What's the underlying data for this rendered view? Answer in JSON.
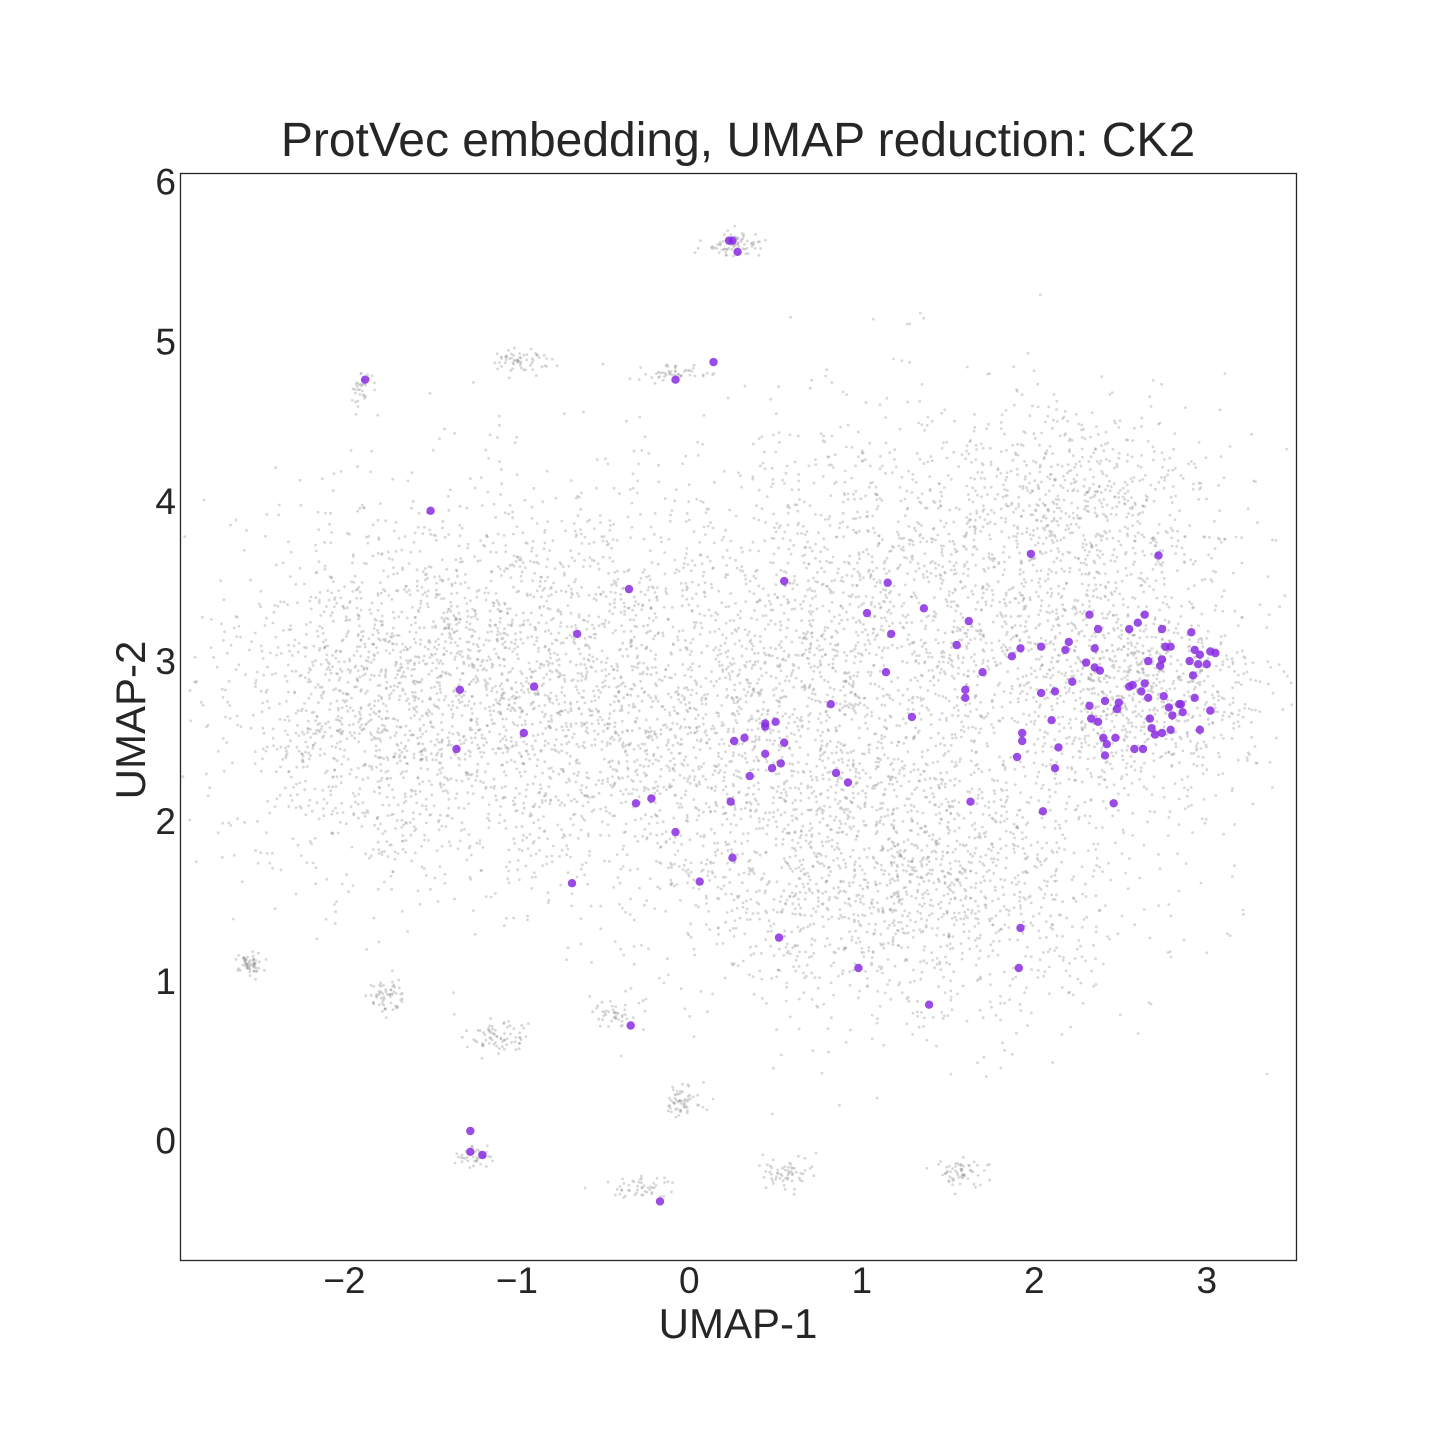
{
  "chart_data": {
    "type": "scatter",
    "title": "ProtVec embedding, UMAP reduction: CK2",
    "xlabel": "UMAP-1",
    "ylabel": "UMAP-2",
    "xlim": [
      -2.95,
      3.52
    ],
    "ylim": [
      -0.75,
      6.05
    ],
    "grid": false,
    "legend": "none",
    "x_ticks": [
      {
        "value": -2,
        "label": "−2"
      },
      {
        "value": -1,
        "label": "−1"
      },
      {
        "value": 0,
        "label": "0"
      },
      {
        "value": 1,
        "label": "1"
      },
      {
        "value": 2,
        "label": "2"
      },
      {
        "value": 3,
        "label": "3"
      }
    ],
    "y_ticks": [
      {
        "value": 0,
        "label": "0"
      },
      {
        "value": 1,
        "label": "1"
      },
      {
        "value": 2,
        "label": "2"
      },
      {
        "value": 3,
        "label": "3"
      },
      {
        "value": 4,
        "label": "4"
      },
      {
        "value": 5,
        "label": "5"
      },
      {
        "value": 6,
        "label": "6"
      }
    ],
    "colors": {
      "background_points": "#8c8c8c",
      "highlighted_points": "#8a2be2",
      "text": "#262626",
      "frame": "#262626"
    },
    "series": [
      {
        "role": "background",
        "color": "#8c8c8c",
        "clusters": [
          {
            "center": [
              -1.0,
              2.8
            ],
            "spread": [
              0.75,
              0.62
            ],
            "count": 2300
          },
          {
            "center": [
              -1.9,
              2.8
            ],
            "spread": [
              0.38,
              0.55
            ],
            "count": 700
          },
          {
            "center": [
              0.6,
              2.6
            ],
            "spread": [
              0.7,
              0.7
            ],
            "count": 1600
          },
          {
            "center": [
              1.3,
              1.6
            ],
            "spread": [
              0.65,
              0.45
            ],
            "count": 1400
          },
          {
            "center": [
              1.5,
              3.5
            ],
            "spread": [
              0.75,
              0.55
            ],
            "count": 1400
          },
          {
            "center": [
              2.3,
              3.9
            ],
            "spread": [
              0.4,
              0.35
            ],
            "count": 500
          },
          {
            "center": [
              2.6,
              2.8
            ],
            "spread": [
              0.38,
              0.32
            ],
            "count": 800
          },
          {
            "center": [
              0.25,
              5.6
            ],
            "spread": [
              0.08,
              0.04
            ],
            "count": 80
          },
          {
            "center": [
              -1.0,
              4.88
            ],
            "spread": [
              0.08,
              0.04
            ],
            "count": 60
          },
          {
            "center": [
              -0.1,
              4.8
            ],
            "spread": [
              0.1,
              0.03
            ],
            "count": 50
          },
          {
            "center": [
              -1.9,
              4.72
            ],
            "spread": [
              0.03,
              0.06
            ],
            "count": 35
          },
          {
            "center": [
              -2.55,
              1.1
            ],
            "spread": [
              0.04,
              0.04
            ],
            "count": 60
          },
          {
            "center": [
              -1.75,
              0.9
            ],
            "spread": [
              0.05,
              0.05
            ],
            "count": 60
          },
          {
            "center": [
              -1.1,
              0.65
            ],
            "spread": [
              0.1,
              0.05
            ],
            "count": 70
          },
          {
            "center": [
              -0.45,
              0.8
            ],
            "spread": [
              0.08,
              0.05
            ],
            "count": 40
          },
          {
            "center": [
              -0.05,
              0.25
            ],
            "spread": [
              0.05,
              0.05
            ],
            "count": 60
          },
          {
            "center": [
              -1.25,
              -0.1
            ],
            "spread": [
              0.05,
              0.04
            ],
            "count": 40
          },
          {
            "center": [
              -0.3,
              -0.3
            ],
            "spread": [
              0.1,
              0.04
            ],
            "count": 50
          },
          {
            "center": [
              0.55,
              -0.2
            ],
            "spread": [
              0.08,
              0.05
            ],
            "count": 60
          },
          {
            "center": [
              1.55,
              -0.2
            ],
            "spread": [
              0.08,
              0.05
            ],
            "count": 60
          }
        ]
      },
      {
        "role": "highlighted",
        "color": "#8a2be2",
        "points": [
          [
            0.23,
            5.63
          ],
          [
            0.25,
            5.63
          ],
          [
            0.28,
            5.56
          ],
          [
            0.14,
            4.87
          ],
          [
            -0.08,
            4.76
          ],
          [
            -1.88,
            4.76
          ],
          [
            -1.5,
            3.94
          ],
          [
            -0.35,
            3.45
          ],
          [
            -0.65,
            3.17
          ],
          [
            -1.33,
            2.82
          ],
          [
            -0.9,
            2.84
          ],
          [
            -0.96,
            2.55
          ],
          [
            -1.35,
            2.45
          ],
          [
            0.55,
            3.5
          ],
          [
            1.03,
            3.3
          ],
          [
            1.15,
            3.49
          ],
          [
            1.36,
            3.33
          ],
          [
            1.17,
            3.17
          ],
          [
            1.14,
            2.93
          ],
          [
            1.29,
            2.65
          ],
          [
            0.82,
            2.73
          ],
          [
            0.26,
            2.5
          ],
          [
            0.32,
            2.52
          ],
          [
            0.44,
            2.61
          ],
          [
            0.44,
            2.59
          ],
          [
            0.5,
            2.62
          ],
          [
            0.55,
            2.49
          ],
          [
            0.44,
            2.42
          ],
          [
            0.48,
            2.33
          ],
          [
            0.53,
            2.36
          ],
          [
            0.35,
            2.28
          ],
          [
            0.85,
            2.3
          ],
          [
            0.92,
            2.24
          ],
          [
            0.24,
            2.12
          ],
          [
            -0.22,
            2.14
          ],
          [
            -0.31,
            2.11
          ],
          [
            -0.08,
            1.93
          ],
          [
            0.25,
            1.77
          ],
          [
            0.06,
            1.62
          ],
          [
            -0.68,
            1.61
          ],
          [
            0.52,
            1.27
          ],
          [
            0.98,
            1.08
          ],
          [
            1.39,
            0.85
          ],
          [
            -0.34,
            0.72
          ],
          [
            -1.27,
            0.06
          ],
          [
            -1.27,
            -0.07
          ],
          [
            -1.2,
            -0.09
          ],
          [
            -0.17,
            -0.38
          ],
          [
            1.62,
            3.25
          ],
          [
            1.55,
            3.1
          ],
          [
            1.6,
            2.82
          ],
          [
            1.6,
            2.77
          ],
          [
            1.7,
            2.93
          ],
          [
            1.63,
            2.12
          ],
          [
            1.87,
            3.03
          ],
          [
            1.92,
            3.08
          ],
          [
            1.98,
            3.67
          ],
          [
            2.04,
            3.09
          ],
          [
            2.04,
            2.8
          ],
          [
            2.12,
            2.81
          ],
          [
            2.18,
            3.07
          ],
          [
            2.2,
            3.12
          ],
          [
            2.22,
            2.87
          ],
          [
            2.14,
            2.46
          ],
          [
            2.12,
            2.33
          ],
          [
            2.1,
            2.63
          ],
          [
            2.05,
            2.06
          ],
          [
            1.93,
            2.55
          ],
          [
            1.93,
            2.5
          ],
          [
            1.9,
            2.4
          ],
          [
            1.92,
            1.33
          ],
          [
            1.91,
            1.08
          ],
          [
            2.3,
            2.99
          ],
          [
            2.32,
            3.29
          ],
          [
            2.35,
            3.08
          ],
          [
            2.37,
            3.2
          ],
          [
            2.35,
            2.96
          ],
          [
            2.38,
            2.94
          ],
          [
            2.32,
            2.72
          ],
          [
            2.33,
            2.64
          ],
          [
            2.37,
            2.62
          ],
          [
            2.41,
            2.75
          ],
          [
            2.4,
            2.52
          ],
          [
            2.42,
            2.48
          ],
          [
            2.41,
            2.41
          ],
          [
            2.47,
            2.52
          ],
          [
            2.48,
            2.7
          ],
          [
            2.49,
            2.74
          ],
          [
            2.46,
            2.11
          ],
          [
            2.55,
            3.2
          ],
          [
            2.55,
            2.84
          ],
          [
            2.57,
            2.85
          ],
          [
            2.58,
            2.45
          ],
          [
            2.6,
            3.24
          ],
          [
            2.64,
            3.29
          ],
          [
            2.66,
            3.0
          ],
          [
            2.62,
            2.81
          ],
          [
            2.64,
            2.86
          ],
          [
            2.66,
            2.77
          ],
          [
            2.63,
            2.45
          ],
          [
            2.67,
            2.64
          ],
          [
            2.68,
            2.58
          ],
          [
            2.7,
            2.54
          ],
          [
            2.72,
            3.66
          ],
          [
            2.74,
            3.2
          ],
          [
            2.74,
            3.01
          ],
          [
            2.73,
            2.97
          ],
          [
            2.76,
            3.09
          ],
          [
            2.79,
            3.09
          ],
          [
            2.75,
            2.78
          ],
          [
            2.78,
            2.71
          ],
          [
            2.8,
            2.66
          ],
          [
            2.74,
            2.55
          ],
          [
            2.79,
            2.57
          ],
          [
            2.84,
            2.73
          ],
          [
            2.85,
            2.73
          ],
          [
            2.86,
            2.68
          ],
          [
            2.91,
            3.18
          ],
          [
            2.9,
            3.0
          ],
          [
            2.93,
            3.07
          ],
          [
            2.96,
            3.04
          ],
          [
            2.95,
            2.98
          ],
          [
            2.93,
            2.77
          ],
          [
            2.92,
            2.91
          ],
          [
            2.96,
            2.57
          ],
          [
            3.0,
            2.98
          ],
          [
            3.02,
            3.06
          ],
          [
            3.05,
            3.05
          ],
          [
            3.02,
            2.69
          ]
        ]
      }
    ]
  }
}
